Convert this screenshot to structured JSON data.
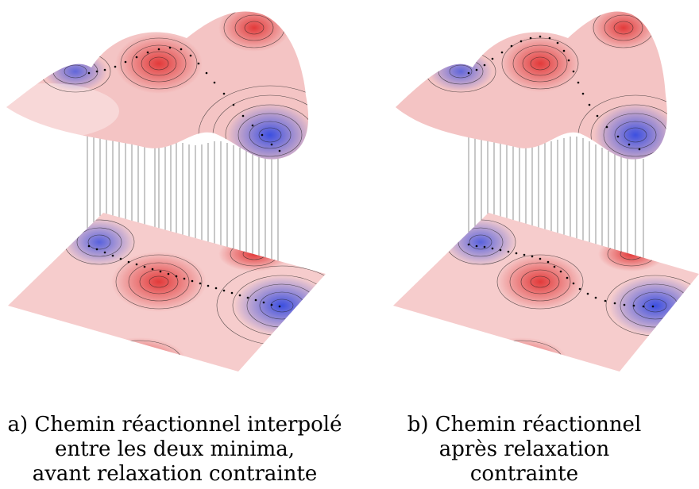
{
  "figure": {
    "colors": {
      "high": "#e23a3a",
      "neutral": "#ffffff",
      "low": "#3c4fe0",
      "contour": "#222222",
      "path": "#000000"
    },
    "panels": [
      {
        "caption": [
          "a) Chemin réactionnel interpolé",
          "entre les deux minima,",
          "avant relaxation contrainte"
        ],
        "path_type": "straight-interpolation"
      },
      {
        "caption": [
          "b) Chemin réactionnel",
          "après relaxation",
          "contrainte"
        ],
        "path_type": "relaxed"
      }
    ]
  }
}
